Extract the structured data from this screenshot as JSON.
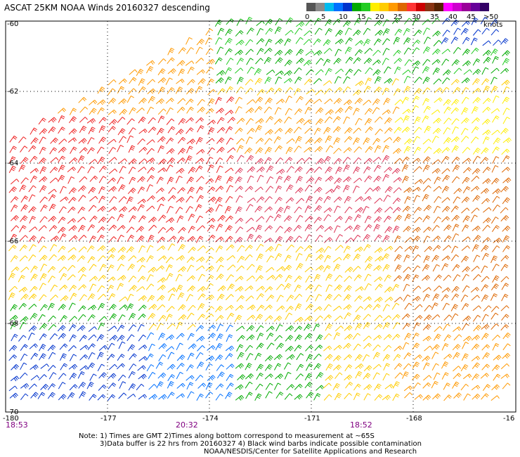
{
  "title": "ASCAT 25KM NOAA Winds 20160327 descending",
  "legend": {
    "labels": [
      "0",
      "5",
      "10",
      "15",
      "20",
      "25",
      "30",
      "35",
      "40",
      "45",
      ">50 knots"
    ],
    "colors": [
      "#555555",
      "#8a8a8a",
      "#00bbee",
      "#0070ff",
      "#0033cc",
      "#00aa00",
      "#22cc22",
      "#ffee00",
      "#ffcc00",
      "#ff9900",
      "#dd6600",
      "#ff3333",
      "#cc0000",
      "#883311",
      "#552200",
      "#ff00ff",
      "#cc00cc",
      "#990099",
      "#660099",
      "#330066"
    ]
  },
  "axes": {
    "lon_ticks": [
      "-180",
      "-177",
      "-174",
      "-171",
      "-168",
      "-16"
    ],
    "lat_ticks": [
      "-60",
      "-62",
      "-64",
      "-66",
      "-68",
      "-70"
    ]
  },
  "times": [
    "18:53",
    "20:32",
    "18:52"
  ],
  "notes": [
    "Note: 1) Times are GMT 2)Times along bottom correspond to measurement at ~65S",
    "3)Data buffer is 22 hrs from 20160327 4) Black wind barbs indicate possible contamination",
    "NOAA/NESDIS/Center for Satellite Applications and Research"
  ]
}
